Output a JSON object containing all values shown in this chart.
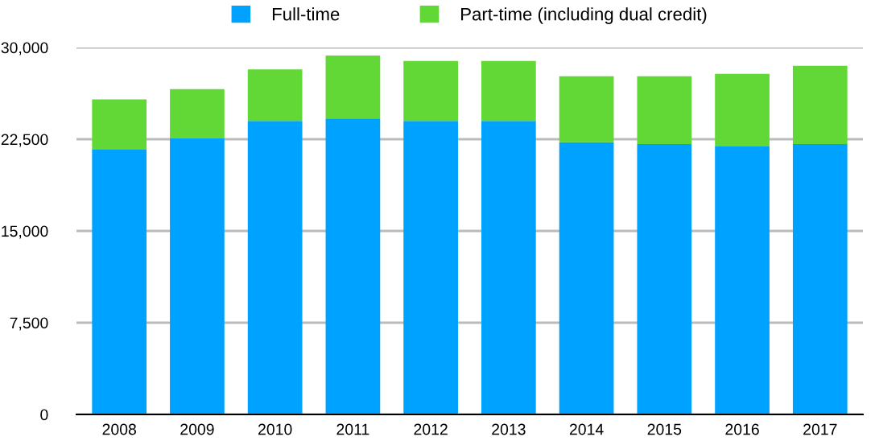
{
  "chart_data": {
    "type": "bar",
    "stacked": true,
    "categories": [
      "2008",
      "2009",
      "2010",
      "2011",
      "2012",
      "2013",
      "2014",
      "2015",
      "2016",
      "2017"
    ],
    "series": [
      {
        "name": "Full-time",
        "color": "#00a2ff",
        "values": [
          21700,
          22600,
          24000,
          24200,
          24000,
          24000,
          22250,
          22100,
          21900,
          22100
        ]
      },
      {
        "name": "Part-time (including dual credit)",
        "color": "#61d836",
        "values": [
          4050,
          4000,
          4200,
          5150,
          4900,
          4900,
          5400,
          5550,
          5950,
          6400
        ]
      }
    ],
    "ylim": [
      0,
      30000
    ],
    "yticks": [
      {
        "value": 0,
        "label": "0"
      },
      {
        "value": 7500,
        "label": "7,500"
      },
      {
        "value": 15000,
        "label": "15,000"
      },
      {
        "value": 22500,
        "label": "22,500"
      },
      {
        "value": 30000,
        "label": "30,000"
      }
    ],
    "grid": "y",
    "legend": "top"
  }
}
